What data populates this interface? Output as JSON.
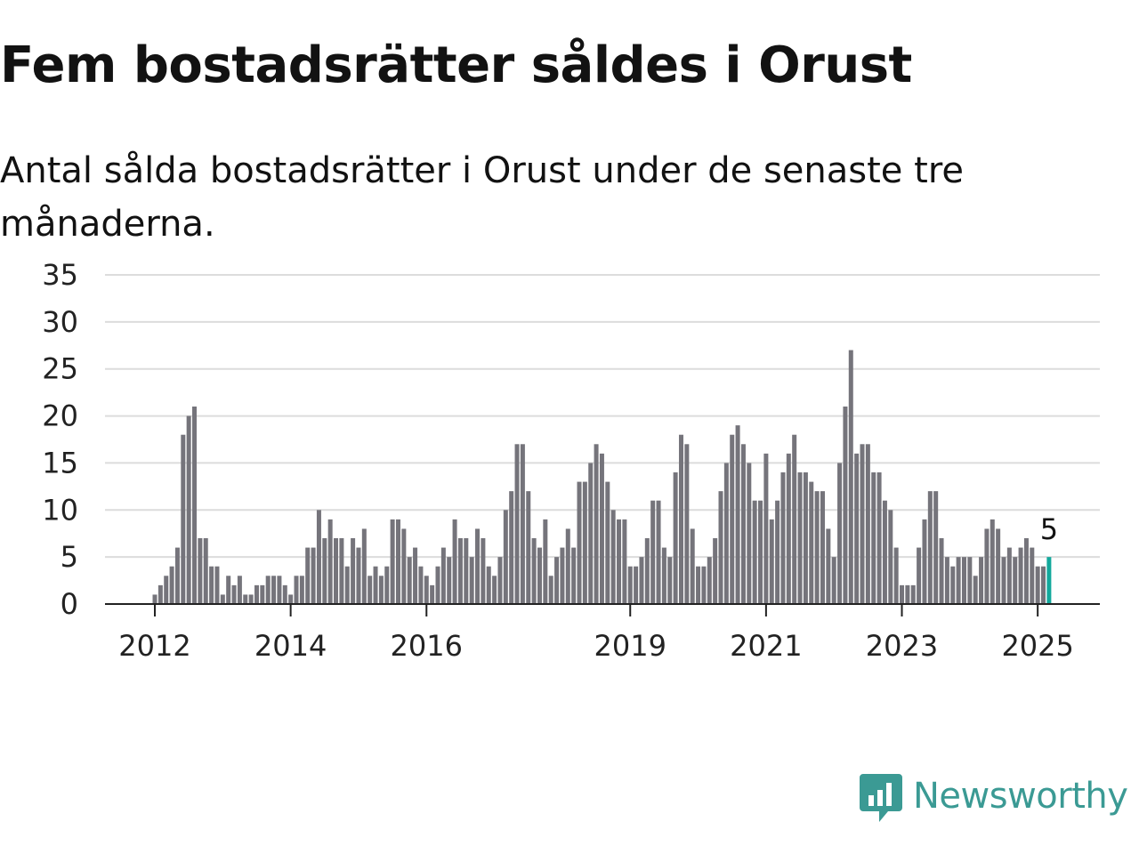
{
  "header": {
    "title": "Fem bostadsrätter såldes i Orust",
    "subtitle": "Antal sålda bostadsrätter i Orust under de senaste tre månaderna."
  },
  "brand": {
    "name": "Newsworthy",
    "icon": "newsworthy-logo-icon",
    "color": "#3b9a94"
  },
  "chart_data": {
    "type": "bar",
    "title": "Fem bostadsrätter såldes i Orust",
    "subtitle": "Antal sålda bostadsrätter i Orust under de senaste tre månaderna.",
    "xlabel": "",
    "ylabel": "",
    "ylim": [
      0,
      35
    ],
    "yticks": [
      0,
      5,
      10,
      15,
      20,
      25,
      30,
      35
    ],
    "xticks": [
      {
        "label": "2012",
        "index": 0
      },
      {
        "label": "2014",
        "index": 24
      },
      {
        "label": "2016",
        "index": 48
      },
      {
        "label": "2019",
        "index": 84
      },
      {
        "label": "2021",
        "index": 108
      },
      {
        "label": "2023",
        "index": 132
      },
      {
        "label": "2025",
        "index": 156
      }
    ],
    "start_month": "2012-01",
    "grid": true,
    "bar_color": "#75747b",
    "highlight_color": "#12a89c",
    "highlight_label": "5",
    "values": [
      1,
      2,
      3,
      4,
      6,
      18,
      20,
      21,
      7,
      7,
      4,
      4,
      1,
      3,
      2,
      3,
      1,
      1,
      2,
      2,
      3,
      3,
      3,
      2,
      1,
      3,
      3,
      6,
      6,
      10,
      7,
      9,
      7,
      7,
      4,
      7,
      6,
      8,
      3,
      4,
      3,
      4,
      9,
      9,
      8,
      5,
      6,
      4,
      3,
      2,
      4,
      6,
      5,
      9,
      7,
      7,
      5,
      8,
      7,
      4,
      3,
      5,
      10,
      12,
      17,
      17,
      12,
      7,
      6,
      9,
      3,
      5,
      6,
      8,
      6,
      13,
      13,
      15,
      17,
      16,
      13,
      10,
      9,
      9,
      4,
      4,
      5,
      7,
      11,
      11,
      6,
      5,
      14,
      18,
      17,
      8,
      4,
      4,
      5,
      7,
      12,
      15,
      18,
      19,
      17,
      15,
      11,
      11,
      16,
      9,
      11,
      14,
      16,
      18,
      14,
      14,
      13,
      12,
      12,
      8,
      5,
      15,
      21,
      27,
      16,
      17,
      17,
      14,
      14,
      11,
      10,
      6,
      2,
      2,
      2,
      6,
      9,
      12,
      12,
      7,
      5,
      4,
      5,
      5,
      5,
      3,
      5,
      8,
      9,
      8,
      5,
      6,
      5,
      6,
      7,
      6,
      4,
      4,
      5
    ]
  }
}
